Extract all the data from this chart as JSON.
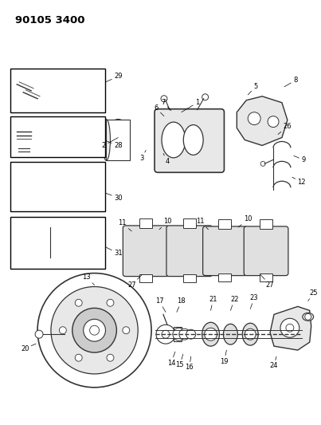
{
  "title": "90105 3400",
  "bg_color": "#ffffff",
  "fig_width": 4.03,
  "fig_height": 5.33,
  "dpi": 100,
  "line_color": "#333333",
  "label_fontsize": 6.0,
  "title_fontsize": 9.5
}
